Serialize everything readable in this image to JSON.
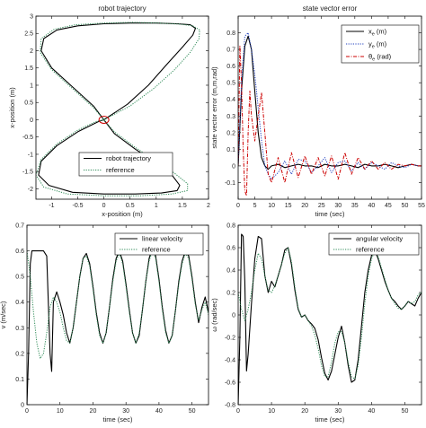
{
  "chart_data": [
    {
      "type": "line",
      "title": "robot trajectory",
      "xlabel": "x-position (m)",
      "ylabel": "x-position (m)",
      "xlim": [
        -1.3,
        2.0
      ],
      "ylim": [
        -2.3,
        3.0
      ],
      "xticks": [
        "-1",
        "-0.5",
        "0",
        "0.5",
        "1",
        "1.5",
        "2"
      ],
      "xtick_values": [
        -1,
        -0.5,
        0,
        0.5,
        1,
        1.5,
        2
      ],
      "yticks": [
        "-2",
        "-1.5",
        "-1",
        "-0.5",
        "0",
        "0.5",
        "1",
        "1.5",
        "2",
        "2.5",
        "3"
      ],
      "ytick_values": [
        -2,
        -1.5,
        -1,
        -0.5,
        0,
        0.5,
        1,
        1.5,
        2,
        2.5,
        3
      ],
      "legend_position": "lower-center",
      "annotation": "start point circle at (0, 0)",
      "series": [
        {
          "name": "robot trajectory",
          "color": "#000000",
          "style": "solid",
          "x": [
            0.0,
            0.45,
            0.85,
            1.2,
            1.5,
            1.7,
            1.75,
            1.65,
            1.4,
            1.0,
            0.5,
            0.0,
            -0.5,
            -0.9,
            -1.15,
            -1.2,
            -1.0,
            -0.6,
            -0.2,
            0.0,
            0.2,
            0.6,
            1.0,
            1.3,
            1.45,
            1.4,
            1.1,
            0.6,
            0.0,
            -0.6,
            -1.05,
            -1.25,
            -1.2,
            -0.9,
            -0.5,
            -0.1,
            0.0
          ],
          "y": [
            0.0,
            0.45,
            1.0,
            1.6,
            2.1,
            2.45,
            2.65,
            2.75,
            2.78,
            2.8,
            2.8,
            2.78,
            2.72,
            2.6,
            2.35,
            2.0,
            1.5,
            0.95,
            0.4,
            0.0,
            -0.4,
            -0.85,
            -1.25,
            -1.6,
            -1.9,
            -2.05,
            -2.12,
            -2.15,
            -2.15,
            -2.1,
            -1.9,
            -1.6,
            -1.2,
            -0.75,
            -0.35,
            -0.05,
            0.0
          ]
        },
        {
          "name": "reference",
          "color": "#2e8b57",
          "style": "dotted",
          "x": [
            0.0,
            0.5,
            0.95,
            1.35,
            1.65,
            1.82,
            1.83,
            1.7,
            1.45,
            1.05,
            0.55,
            0.0,
            -0.55,
            -0.95,
            -1.2,
            -1.22,
            -1.0,
            -0.6,
            -0.2,
            0.0,
            0.2,
            0.6,
            1.0,
            1.35,
            1.6,
            1.6,
            1.3,
            0.7,
            0.0,
            -0.7,
            -1.15,
            -1.3,
            -1.2,
            -0.9,
            -0.5,
            -0.15,
            0.0
          ],
          "y": [
            0.0,
            0.4,
            0.9,
            1.45,
            1.95,
            2.35,
            2.6,
            2.72,
            2.77,
            2.8,
            2.82,
            2.8,
            2.75,
            2.62,
            2.35,
            1.95,
            1.45,
            0.9,
            0.35,
            0.0,
            -0.35,
            -0.8,
            -1.2,
            -1.55,
            -1.85,
            -2.05,
            -2.15,
            -2.2,
            -2.2,
            -2.15,
            -1.95,
            -1.6,
            -1.15,
            -0.7,
            -0.3,
            -0.05,
            0.0
          ]
        }
      ]
    },
    {
      "type": "line",
      "title": "state vector error",
      "xlabel": "time (sec)",
      "ylabel": "state vector error (m,m,rad)",
      "xlim": [
        0,
        55
      ],
      "ylim": [
        -0.2,
        0.9
      ],
      "xticks": [
        "0",
        "5",
        "10",
        "15",
        "20",
        "25",
        "30",
        "35",
        "40",
        "45",
        "50",
        "55"
      ],
      "xtick_values": [
        0,
        5,
        10,
        15,
        20,
        25,
        30,
        35,
        40,
        45,
        50,
        55
      ],
      "yticks": [
        "-0.1",
        "0",
        "0.1",
        "0.2",
        "0.3",
        "0.4",
        "0.5",
        "0.6",
        "0.7",
        "0.8"
      ],
      "ytick_values": [
        -0.1,
        0,
        0.1,
        0.2,
        0.3,
        0.4,
        0.5,
        0.6,
        0.7,
        0.8
      ],
      "legend_position": "top-right",
      "series": [
        {
          "name": "x",
          "sub": "e",
          "unit": " (m)",
          "color": "#000000",
          "style": "solid",
          "x": [
            0,
            1,
            2,
            3,
            4,
            5,
            6,
            7,
            8,
            9,
            10,
            12,
            14,
            16,
            18,
            20,
            22,
            24,
            26,
            28,
            30,
            32,
            34,
            36,
            38,
            40,
            42,
            44,
            46,
            48,
            50,
            52,
            54,
            55
          ],
          "y": [
            0.0,
            0.45,
            0.72,
            0.78,
            0.7,
            0.45,
            0.2,
            0.05,
            0.0,
            -0.02,
            0.0,
            0.01,
            -0.01,
            0.0,
            0.01,
            0.0,
            0.0,
            -0.01,
            0.01,
            0.0,
            0.0,
            0.01,
            0.0,
            -0.01,
            0.01,
            0.0,
            0.0,
            0.01,
            0.0,
            -0.01,
            0.0,
            0.01,
            0.0,
            0.0
          ]
        },
        {
          "name": "y",
          "sub": "e",
          "unit": " (m)",
          "color": "#1f3fbf",
          "style": "dotted",
          "x": [
            0,
            1,
            2,
            3,
            4,
            5,
            6,
            7,
            8,
            9,
            10,
            12,
            14,
            16,
            18,
            20,
            22,
            24,
            26,
            28,
            30,
            32,
            34,
            36,
            38,
            40,
            42,
            44,
            46,
            48,
            50,
            52,
            54,
            55
          ],
          "y": [
            0.0,
            0.5,
            0.78,
            0.8,
            0.7,
            0.55,
            0.35,
            0.15,
            0.0,
            -0.05,
            -0.08,
            -0.04,
            0.03,
            -0.05,
            0.04,
            0.03,
            -0.04,
            0.0,
            0.05,
            -0.04,
            0.02,
            0.03,
            -0.03,
            0.02,
            -0.02,
            0.02,
            0.0,
            -0.02,
            0.02,
            0.0,
            -0.01,
            0.01,
            0.0,
            0.0
          ]
        },
        {
          "name": "θ",
          "sub": "e",
          "unit": " (rad)",
          "color": "#cc0000",
          "style": "dashdot",
          "x": [
            0,
            0.5,
            1,
            1.5,
            2,
            2.5,
            3,
            3.5,
            4,
            5,
            6,
            7,
            8,
            9,
            10,
            12,
            14,
            16,
            18,
            20,
            22,
            24,
            26,
            28,
            30,
            32,
            34,
            36,
            38,
            40,
            42,
            44,
            46,
            48,
            50,
            52,
            54,
            55
          ],
          "y": [
            0.0,
            0.72,
            0.5,
            0.1,
            -0.15,
            -0.18,
            0.2,
            0.45,
            0.3,
            0.15,
            0.3,
            0.44,
            0.2,
            -0.05,
            -0.1,
            0.05,
            -0.1,
            0.08,
            -0.07,
            0.06,
            -0.05,
            0.05,
            -0.06,
            0.06,
            -0.08,
            0.08,
            -0.05,
            0.05,
            -0.02,
            0.03,
            -0.02,
            0.02,
            -0.02,
            0.01,
            0.0,
            0.01,
            0.0,
            0.0
          ]
        }
      ]
    },
    {
      "type": "line",
      "title": "",
      "xlabel": "time (sec)",
      "ylabel": "v (m/sec)",
      "xlim": [
        0,
        55
      ],
      "ylim": [
        0,
        0.7
      ],
      "xticks": [
        "0",
        "10",
        "20",
        "30",
        "40",
        "50"
      ],
      "xtick_values": [
        0,
        10,
        20,
        30,
        40,
        50
      ],
      "yticks": [
        "0",
        "0.1",
        "0.2",
        "0.3",
        "0.4",
        "0.5",
        "0.6",
        "0.7"
      ],
      "ytick_values": [
        0,
        0.1,
        0.2,
        0.3,
        0.4,
        0.5,
        0.6,
        0.7
      ],
      "legend_position": "top-right",
      "series": [
        {
          "name": "linear velocity",
          "color": "#000000",
          "style": "solid",
          "x": [
            0,
            0.5,
            1,
            1.5,
            2,
            3,
            4,
            5,
            6,
            7,
            7.5,
            8,
            9,
            10,
            11,
            12,
            13,
            14,
            15,
            16,
            17,
            18,
            19,
            20,
            21,
            22,
            23,
            24,
            25,
            26,
            27,
            28,
            29,
            30,
            31,
            32,
            33,
            34,
            35,
            36,
            37,
            38,
            39,
            40,
            41,
            42,
            43,
            44,
            45,
            46,
            47,
            48,
            49,
            50,
            51,
            52,
            53,
            54,
            55
          ],
          "y": [
            0.0,
            0.2,
            0.55,
            0.6,
            0.6,
            0.6,
            0.6,
            0.6,
            0.58,
            0.2,
            0.13,
            0.4,
            0.44,
            0.4,
            0.35,
            0.28,
            0.24,
            0.3,
            0.4,
            0.5,
            0.57,
            0.59,
            0.55,
            0.46,
            0.36,
            0.28,
            0.24,
            0.28,
            0.38,
            0.49,
            0.57,
            0.6,
            0.56,
            0.47,
            0.37,
            0.28,
            0.24,
            0.27,
            0.37,
            0.48,
            0.57,
            0.61,
            0.58,
            0.49,
            0.38,
            0.29,
            0.24,
            0.27,
            0.37,
            0.48,
            0.56,
            0.6,
            0.58,
            0.5,
            0.4,
            0.32,
            0.38,
            0.42,
            0.36
          ]
        },
        {
          "name": "reference",
          "color": "#2e8b57",
          "style": "dotted",
          "x": [
            0,
            1,
            2,
            3,
            4,
            5,
            6,
            7,
            8,
            9,
            10,
            11,
            12,
            13,
            14,
            15,
            16,
            17,
            18,
            19,
            20,
            21,
            22,
            23,
            24,
            25,
            26,
            27,
            28,
            29,
            30,
            31,
            32,
            33,
            34,
            35,
            36,
            37,
            38,
            39,
            40,
            41,
            42,
            43,
            44,
            45,
            46,
            47,
            48,
            49,
            50,
            51,
            52,
            53,
            54,
            55
          ],
          "y": [
            0.6,
            0.5,
            0.36,
            0.24,
            0.18,
            0.2,
            0.28,
            0.38,
            0.42,
            0.4,
            0.36,
            0.3,
            0.25,
            0.24,
            0.3,
            0.4,
            0.5,
            0.57,
            0.58,
            0.54,
            0.45,
            0.35,
            0.27,
            0.24,
            0.28,
            0.38,
            0.48,
            0.56,
            0.59,
            0.55,
            0.46,
            0.36,
            0.28,
            0.24,
            0.28,
            0.37,
            0.48,
            0.56,
            0.6,
            0.57,
            0.48,
            0.37,
            0.28,
            0.24,
            0.27,
            0.37,
            0.47,
            0.55,
            0.59,
            0.57,
            0.49,
            0.39,
            0.33,
            0.37,
            0.4,
            0.35
          ]
        }
      ]
    },
    {
      "type": "line",
      "title": "",
      "xlabel": "time (sec)",
      "ylabel": "ω (rad/sec)",
      "xlim": [
        0,
        55
      ],
      "ylim": [
        -0.8,
        0.8
      ],
      "xticks": [
        "0",
        "10",
        "20",
        "30",
        "40",
        "50"
      ],
      "xtick_values": [
        0,
        10,
        20,
        30,
        40,
        50
      ],
      "yticks": [
        "-0.8",
        "-0.6",
        "-0.4",
        "-0.2",
        "0",
        "0.2",
        "0.4",
        "0.6",
        "0.8"
      ],
      "ytick_values": [
        -0.8,
        -0.6,
        -0.4,
        -0.2,
        0,
        0.2,
        0.4,
        0.6,
        0.8
      ],
      "legend_position": "top-right",
      "series": [
        {
          "name": "angular velocity",
          "color": "#000000",
          "style": "solid",
          "x": [
            0,
            0.5,
            1,
            1.5,
            2,
            2.5,
            3,
            4,
            5,
            6,
            7,
            8,
            9,
            10,
            11,
            12,
            13,
            14,
            15,
            16,
            17,
            18,
            19,
            20,
            21,
            22,
            23,
            24,
            25,
            26,
            27,
            28,
            29,
            30,
            31,
            32,
            33,
            34,
            35,
            36,
            37,
            38,
            39,
            40,
            41,
            42,
            43,
            44,
            45,
            46,
            47,
            48,
            49,
            50,
            51,
            52,
            53,
            54,
            55
          ],
          "y": [
            -0.8,
            -0.2,
            0.72,
            0.7,
            0.3,
            -0.5,
            -0.35,
            0.1,
            0.5,
            0.7,
            0.68,
            0.35,
            0.2,
            0.3,
            0.25,
            0.35,
            0.45,
            0.58,
            0.6,
            0.45,
            0.22,
            0.05,
            -0.02,
            0.0,
            -0.05,
            -0.08,
            -0.12,
            -0.22,
            -0.38,
            -0.52,
            -0.58,
            -0.5,
            -0.35,
            -0.2,
            -0.1,
            -0.25,
            -0.45,
            -0.6,
            -0.58,
            -0.4,
            -0.1,
            0.2,
            0.4,
            0.53,
            0.58,
            0.5,
            0.4,
            0.3,
            0.22,
            0.15,
            0.12,
            0.08,
            0.05,
            0.08,
            0.12,
            0.1,
            0.08,
            0.15,
            0.2
          ]
        },
        {
          "name": "reference",
          "color": "#2e8b57",
          "style": "dotted",
          "x": [
            0,
            1,
            2,
            3,
            4,
            5,
            6,
            7,
            8,
            9,
            10,
            11,
            12,
            13,
            14,
            15,
            16,
            17,
            18,
            19,
            20,
            21,
            22,
            23,
            24,
            25,
            26,
            27,
            28,
            29,
            30,
            31,
            32,
            33,
            34,
            35,
            36,
            37,
            38,
            39,
            40,
            41,
            42,
            43,
            44,
            45,
            46,
            47,
            48,
            49,
            50,
            51,
            52,
            53,
            54,
            55
          ],
          "y": [
            0.2,
            0.05,
            -0.05,
            0.05,
            0.2,
            0.4,
            0.55,
            0.5,
            0.35,
            0.22,
            0.2,
            0.26,
            0.35,
            0.45,
            0.55,
            0.6,
            0.48,
            0.25,
            0.06,
            -0.02,
            0.0,
            -0.05,
            -0.1,
            -0.18,
            -0.3,
            -0.45,
            -0.55,
            -0.55,
            -0.42,
            -0.25,
            -0.15,
            -0.15,
            -0.25,
            -0.42,
            -0.55,
            -0.57,
            -0.45,
            -0.2,
            0.1,
            0.35,
            0.5,
            0.57,
            0.52,
            0.42,
            0.32,
            0.22,
            0.15,
            0.1,
            0.06,
            0.05,
            0.08,
            0.12,
            0.1,
            0.12,
            0.18,
            0.2
          ]
        }
      ]
    }
  ]
}
